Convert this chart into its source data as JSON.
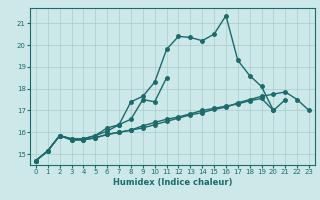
{
  "xlabel": "Humidex (Indice chaleur)",
  "bg_color": "#cce8e8",
  "grid_color": "#aacccc",
  "line_color": "#1a6b6b",
  "xlim": [
    -0.5,
    23.5
  ],
  "ylim": [
    14.5,
    21.7
  ],
  "yticks": [
    15,
    16,
    17,
    18,
    19,
    20,
    21
  ],
  "xticks": [
    0,
    1,
    2,
    3,
    4,
    5,
    6,
    7,
    8,
    9,
    10,
    11,
    12,
    13,
    14,
    15,
    16,
    17,
    18,
    19,
    20,
    21,
    22,
    23
  ],
  "line1_y": [
    14.7,
    15.15,
    15.85,
    15.7,
    15.7,
    15.85,
    16.2,
    16.35,
    17.4,
    17.65,
    18.3,
    19.8,
    20.4,
    20.35,
    20.2,
    20.5,
    21.35,
    19.3,
    18.6,
    18.1,
    17.0,
    17.5,
    null,
    null
  ],
  "line2_y": [
    14.7,
    15.15,
    15.85,
    15.7,
    15.7,
    15.85,
    16.05,
    16.35,
    16.6,
    17.5,
    17.4,
    18.5,
    null,
    null,
    null,
    null,
    null,
    null,
    null,
    null,
    null,
    null,
    null,
    null
  ],
  "line3_y": [
    14.7,
    15.15,
    15.85,
    15.65,
    15.65,
    15.75,
    15.9,
    16.0,
    16.1,
    16.3,
    16.45,
    16.6,
    16.7,
    16.85,
    17.0,
    17.1,
    17.2,
    17.3,
    17.45,
    17.55,
    17.0,
    null,
    null,
    null
  ],
  "line4_y": [
    14.7,
    15.15,
    15.85,
    15.65,
    15.65,
    15.75,
    15.9,
    16.0,
    16.1,
    16.2,
    16.35,
    16.5,
    16.65,
    16.8,
    16.9,
    17.05,
    17.15,
    17.35,
    17.5,
    17.65,
    17.75,
    17.85,
    17.5,
    17.0
  ],
  "marker_size": 2.5,
  "line_width": 1.0
}
